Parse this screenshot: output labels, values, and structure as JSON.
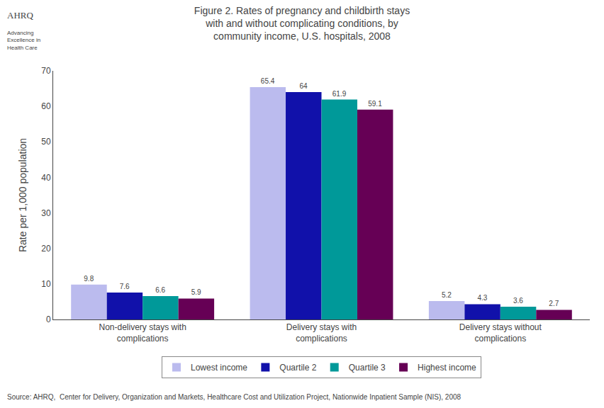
{
  "chart_data": {
    "type": "bar",
    "title": "Figure 2. Rates of pregnancy and childbirth stays\nwith and without complicating conditions, by\ncommunity income, U.S. hospitals, 2008",
    "ylabel": "Rate per 1,000 population",
    "categories": [
      "Non-delivery stays with\ncomplications",
      "Delivery stays with\ncomplications",
      "Delivery stays without\ncomplications"
    ],
    "series": [
      {
        "name": "Lowest income",
        "color": "#BBBBEE",
        "values": [
          9.8,
          65.4,
          5.2
        ]
      },
      {
        "name": "Quartile 2",
        "color": "#1111AA",
        "values": [
          7.6,
          64.0,
          4.3
        ]
      },
      {
        "name": "Quartile 3",
        "color": "#009999",
        "values": [
          6.6,
          61.9,
          3.6
        ]
      },
      {
        "name": "Highest income",
        "color": "#660055",
        "values": [
          5.9,
          59.1,
          2.7
        ]
      }
    ],
    "ylim": [
      0,
      70
    ],
    "yticks": [
      0,
      10,
      20,
      30,
      40,
      50,
      60,
      70
    ],
    "grid": false,
    "legend": "bottom",
    "data_labels": true,
    "annotations": [
      "AHRQ",
      "Advancing\nExcellence in\nHealth Care",
      "Source: AHRQ,  Center for Delivery, Organization and Markets, Healthcare Cost and Utilization Project, Nationwide Inpatient Sample (NIS), 2008"
    ]
  }
}
